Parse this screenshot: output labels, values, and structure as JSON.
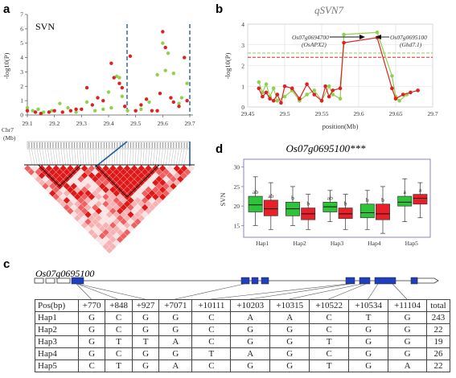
{
  "panels": {
    "a": "a",
    "b": "b",
    "c": "c",
    "d": "d"
  },
  "panel_a": {
    "trait": "SVN",
    "ylabel": "-log10(P)",
    "chr_label": "Chr7",
    "mb_label": "(Mb)",
    "chart_data": {
      "type": "scatter",
      "xlim": [
        29.1,
        29.7
      ],
      "ylim": [
        0,
        7
      ],
      "xticks": [
        "29.1",
        "29.2",
        "29.3",
        "29.4",
        "29.5",
        "29.6",
        "29.7"
      ],
      "yticks": [
        "0",
        "1",
        "2",
        "3",
        "4",
        "5",
        "6",
        "7"
      ],
      "series": [
        {
          "color": "#8fd14f",
          "points": [
            [
              29.1,
              0.5
            ],
            [
              29.12,
              0.3
            ],
            [
              29.14,
              0.4
            ],
            [
              29.16,
              0.2
            ],
            [
              29.19,
              0.3
            ],
            [
              29.22,
              0.8
            ],
            [
              29.25,
              0.5
            ],
            [
              29.28,
              0.2
            ],
            [
              29.32,
              0.9
            ],
            [
              29.35,
              0.3
            ],
            [
              29.38,
              0.4
            ],
            [
              29.4,
              1.6
            ],
            [
              29.41,
              0.5
            ],
            [
              29.43,
              2.7
            ],
            [
              29.44,
              2.6
            ],
            [
              29.45,
              1.3
            ],
            [
              29.46,
              0.6
            ],
            [
              29.47,
              0.3
            ],
            [
              29.5,
              0.3
            ],
            [
              29.52,
              0.4
            ],
            [
              29.55,
              0.9
            ],
            [
              29.58,
              2.8
            ],
            [
              29.6,
              5.0
            ],
            [
              29.61,
              3.1
            ],
            [
              29.62,
              4.3
            ],
            [
              29.64,
              2.9
            ],
            [
              29.66,
              0.8
            ],
            [
              29.67,
              1.2
            ],
            [
              29.69,
              2.2
            ]
          ]
        },
        {
          "color": "#e02020",
          "points": [
            [
              29.1,
              0.3
            ],
            [
              29.13,
              0.2
            ],
            [
              29.15,
              0.1
            ],
            [
              29.18,
              0.2
            ],
            [
              29.2,
              0.3
            ],
            [
              29.23,
              0.2
            ],
            [
              29.26,
              0.3
            ],
            [
              29.28,
              0.4
            ],
            [
              29.3,
              0.4
            ],
            [
              29.32,
              1.9
            ],
            [
              29.34,
              0.7
            ],
            [
              29.36,
              1.2
            ],
            [
              29.38,
              1.0
            ],
            [
              29.41,
              3.6
            ],
            [
              29.42,
              2.6
            ],
            [
              29.44,
              2.2
            ],
            [
              29.45,
              1.9
            ],
            [
              29.46,
              0.6
            ],
            [
              29.48,
              4.1
            ],
            [
              29.5,
              0.3
            ],
            [
              29.52,
              0.7
            ],
            [
              29.54,
              1.1
            ],
            [
              29.56,
              0.3
            ],
            [
              29.58,
              0.3
            ],
            [
              29.59,
              1.5
            ],
            [
              29.6,
              5.8
            ],
            [
              29.61,
              4.7
            ],
            [
              29.63,
              1.2
            ],
            [
              29.64,
              0.9
            ],
            [
              29.66,
              0.6
            ],
            [
              29.68,
              4.0
            ],
            [
              29.69,
              1.0
            ]
          ]
        }
      ]
    }
  },
  "panel_b": {
    "title": "qSVN7",
    "ylabel": "-log10(P)",
    "xlabel": "position(Mb)",
    "annot1_gene": "Os07g0694700",
    "annot1_sub": "(OsAPX2)",
    "annot2_gene": "Os07g0695100",
    "annot2_sub": "(Ghd7.1)",
    "chart_data": {
      "type": "line",
      "xlim": [
        29.45,
        29.7
      ],
      "ylim": [
        0,
        4
      ],
      "xticks": [
        "29.45",
        "29.5",
        "29.55",
        "29.6",
        "29.65",
        "29.7"
      ],
      "yticks": [
        "0",
        "1",
        "2",
        "3",
        "4"
      ],
      "thresholds": [
        {
          "color": "#8fd14f",
          "value": 2.6
        },
        {
          "color": "#e02020",
          "value": 2.4
        }
      ],
      "series": [
        {
          "color": "#8fd14f",
          "points": [
            [
              29.465,
              1.2
            ],
            [
              29.47,
              0.7
            ],
            [
              29.475,
              1.1
            ],
            [
              29.48,
              0.5
            ],
            [
              29.485,
              0.9
            ],
            [
              29.49,
              0.3
            ],
            [
              29.5,
              0.5
            ],
            [
              29.51,
              0.8
            ],
            [
              29.52,
              0.3
            ],
            [
              29.53,
              0.6
            ],
            [
              29.54,
              0.8
            ],
            [
              29.55,
              0.3
            ],
            [
              29.56,
              1.0
            ],
            [
              29.565,
              0.6
            ],
            [
              29.575,
              0.4
            ],
            [
              29.58,
              3.5
            ],
            [
              29.625,
              3.6
            ],
            [
              29.645,
              1.5
            ],
            [
              29.65,
              0.5
            ],
            [
              29.655,
              0.3
            ],
            [
              29.665,
              0.6
            ]
          ]
        },
        {
          "color": "#e02020",
          "points": [
            [
              29.465,
              0.9
            ],
            [
              29.47,
              0.5
            ],
            [
              29.475,
              0.7
            ],
            [
              29.48,
              0.4
            ],
            [
              29.485,
              0.3
            ],
            [
              29.49,
              0.6
            ],
            [
              29.495,
              0.2
            ],
            [
              29.5,
              1.0
            ],
            [
              29.51,
              0.9
            ],
            [
              29.52,
              0.4
            ],
            [
              29.53,
              1.1
            ],
            [
              29.54,
              0.6
            ],
            [
              29.55,
              0.3
            ],
            [
              29.555,
              1.0
            ],
            [
              29.56,
              0.5
            ],
            [
              29.565,
              0.8
            ],
            [
              29.575,
              0.9
            ],
            [
              29.58,
              3.1
            ],
            [
              29.625,
              3.35
            ],
            [
              29.645,
              0.9
            ],
            [
              29.65,
              0.4
            ],
            [
              29.66,
              0.6
            ],
            [
              29.67,
              0.7
            ],
            [
              29.68,
              0.8
            ]
          ]
        }
      ]
    }
  },
  "panel_d": {
    "title": "Os07g0695100***",
    "ylabel": "SVN",
    "chart_data": {
      "type": "box",
      "categories": [
        "Hap1",
        "Hap2",
        "Hap3",
        "Hap4",
        "Hap5"
      ],
      "ylim": [
        12,
        32
      ],
      "yticks": [
        "15",
        "20",
        "25",
        "30"
      ],
      "letters": [
        [
          "ab",
          "ab"
        ],
        [
          "b",
          "b"
        ],
        [
          "ab",
          "b"
        ],
        [
          "b",
          "b"
        ],
        [
          "a",
          "a"
        ]
      ],
      "series": [
        {
          "color": "#2ec43a",
          "boxes": [
            [
              15,
              18.5,
              20.3,
              22.5,
              27.5
            ],
            [
              15,
              17.5,
              19.3,
              21,
              25
            ],
            [
              16,
              18.5,
              19.8,
              21,
              24
            ],
            [
              14,
              17,
              18.3,
              20.5,
              24
            ],
            [
              16,
              20,
              21,
              22.5,
              27
            ]
          ]
        },
        {
          "color": "#e8202a",
          "boxes": [
            [
              14,
              17.5,
              19.3,
              21.5,
              26
            ],
            [
              14,
              16.5,
              18,
              19.5,
              23
            ],
            [
              14,
              16.8,
              18,
              19.5,
              23
            ],
            [
              13,
              16.5,
              18,
              20.5,
              25
            ],
            [
              17,
              20.5,
              22,
              23,
              26
            ]
          ]
        }
      ]
    }
  },
  "panel_c": {
    "gene": "Os07g0695100",
    "headers": [
      "Pos(bp)",
      "+770",
      "+848",
      "+927",
      "+7071",
      "+10111",
      "+10203",
      "+10315",
      "+10522",
      "+10534",
      "+11104",
      "total"
    ],
    "rows": [
      [
        "Hap1",
        "G",
        "C",
        "G",
        "G",
        "C",
        "A",
        "A",
        "C",
        "T",
        "G",
        "243"
      ],
      [
        "Hap2",
        "G",
        "C",
        "G",
        "G",
        "C",
        "G",
        "G",
        "C",
        "G",
        "G",
        "22"
      ],
      [
        "Hap3",
        "G",
        "T",
        "T",
        "A",
        "C",
        "G",
        "G",
        "T",
        "G",
        "G",
        "19"
      ],
      [
        "Hap4",
        "G",
        "C",
        "G",
        "G",
        "T",
        "A",
        "G",
        "C",
        "G",
        "G",
        "26"
      ],
      [
        "Hap5",
        "C",
        "T",
        "G",
        "A",
        "C",
        "G",
        "G",
        "T",
        "G",
        "A",
        "22"
      ]
    ]
  }
}
